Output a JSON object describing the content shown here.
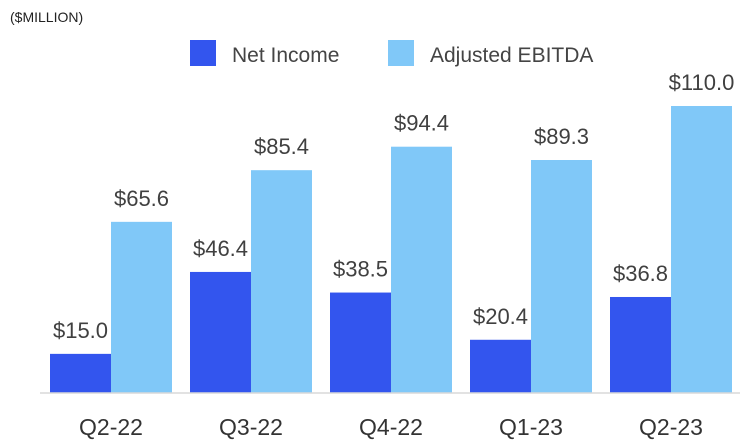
{
  "chart_data": {
    "type": "bar",
    "unit_label": "($MILLION)",
    "categories": [
      "Q2-22",
      "Q3-22",
      "Q4-22",
      "Q1-23",
      "Q2-23"
    ],
    "series": [
      {
        "name": "Net Income",
        "color": "#3355EE",
        "values": [
          15.0,
          46.4,
          38.5,
          20.4,
          36.8
        ],
        "labels": [
          "$15.0",
          "$46.4",
          "$38.5",
          "$20.4",
          "$36.8"
        ]
      },
      {
        "name": "Adjusted EBITDA",
        "color": "#80C8F8",
        "values": [
          65.6,
          85.4,
          94.4,
          89.3,
          110.0
        ],
        "labels": [
          "$65.6",
          "$85.4",
          "$94.4",
          "$89.3",
          "$110.0"
        ]
      }
    ],
    "ylim": [
      0,
      110
    ],
    "grid": false,
    "legend_position": "top-center",
    "axis_color": "#D9D9D9"
  }
}
